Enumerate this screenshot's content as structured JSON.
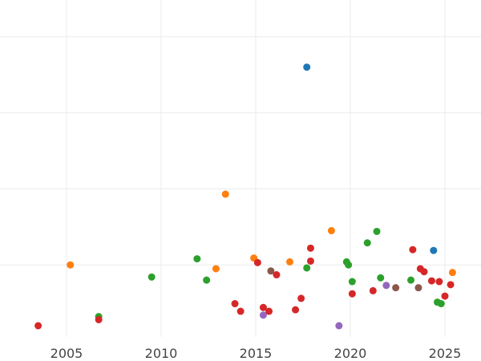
{
  "chart_data": {
    "type": "scatter",
    "title": "",
    "xlabel": "",
    "ylabel": "",
    "xlim": [
      2000,
      2027
    ],
    "ylim": [
      0,
      4.4
    ],
    "grid": true,
    "legend": "none",
    "x_ticks": [
      2005,
      2010,
      2015,
      2020,
      2025
    ],
    "x_tick_labels": [
      "2005",
      "2010",
      "2015",
      "2020",
      "2025"
    ],
    "y_gridlines": [
      1,
      2,
      3,
      4
    ],
    "colors": {
      "blue": "#1f77b4",
      "orange": "#ff7f0e",
      "green": "#2ca02c",
      "red": "#d62728",
      "purple": "#9467bd",
      "brown": "#8c564b"
    },
    "points": [
      {
        "x": 2003.5,
        "y": 0.2,
        "color": "red"
      },
      {
        "x": 2005.2,
        "y": 1.0,
        "color": "orange"
      },
      {
        "x": 2006.7,
        "y": 0.32,
        "color": "green"
      },
      {
        "x": 2006.7,
        "y": 0.28,
        "color": "red"
      },
      {
        "x": 2009.5,
        "y": 0.84,
        "color": "green"
      },
      {
        "x": 2011.9,
        "y": 1.08,
        "color": "green"
      },
      {
        "x": 2012.4,
        "y": 0.8,
        "color": "green"
      },
      {
        "x": 2012.9,
        "y": 0.95,
        "color": "orange"
      },
      {
        "x": 2013.4,
        "y": 1.93,
        "color": "orange"
      },
      {
        "x": 2013.9,
        "y": 0.49,
        "color": "red"
      },
      {
        "x": 2014.2,
        "y": 0.39,
        "color": "red"
      },
      {
        "x": 2014.9,
        "y": 1.09,
        "color": "orange"
      },
      {
        "x": 2015.1,
        "y": 1.03,
        "color": "red"
      },
      {
        "x": 2015.4,
        "y": 0.44,
        "color": "red"
      },
      {
        "x": 2015.4,
        "y": 0.34,
        "color": "purple"
      },
      {
        "x": 2015.7,
        "y": 0.39,
        "color": "red"
      },
      {
        "x": 2015.8,
        "y": 0.92,
        "color": "brown"
      },
      {
        "x": 2016.1,
        "y": 0.87,
        "color": "red"
      },
      {
        "x": 2016.8,
        "y": 1.04,
        "color": "orange"
      },
      {
        "x": 2017.1,
        "y": 0.41,
        "color": "red"
      },
      {
        "x": 2017.4,
        "y": 0.56,
        "color": "red"
      },
      {
        "x": 2017.7,
        "y": 0.96,
        "color": "green"
      },
      {
        "x": 2017.7,
        "y": 3.6,
        "color": "blue"
      },
      {
        "x": 2017.9,
        "y": 1.05,
        "color": "red"
      },
      {
        "x": 2017.9,
        "y": 1.22,
        "color": "red"
      },
      {
        "x": 2019.0,
        "y": 1.45,
        "color": "orange"
      },
      {
        "x": 2019.4,
        "y": 0.2,
        "color": "purple"
      },
      {
        "x": 2019.8,
        "y": 1.04,
        "color": "green"
      },
      {
        "x": 2019.9,
        "y": 1.0,
        "color": "green"
      },
      {
        "x": 2020.1,
        "y": 0.78,
        "color": "green"
      },
      {
        "x": 2020.1,
        "y": 0.62,
        "color": "red"
      },
      {
        "x": 2020.9,
        "y": 1.29,
        "color": "green"
      },
      {
        "x": 2021.2,
        "y": 0.66,
        "color": "red"
      },
      {
        "x": 2021.4,
        "y": 1.44,
        "color": "green"
      },
      {
        "x": 2021.6,
        "y": 0.83,
        "color": "green"
      },
      {
        "x": 2021.9,
        "y": 0.73,
        "color": "purple"
      },
      {
        "x": 2022.4,
        "y": 0.7,
        "color": "brown"
      },
      {
        "x": 2023.2,
        "y": 0.8,
        "color": "green"
      },
      {
        "x": 2023.3,
        "y": 1.2,
        "color": "red"
      },
      {
        "x": 2023.6,
        "y": 0.7,
        "color": "brown"
      },
      {
        "x": 2023.7,
        "y": 0.95,
        "color": "red"
      },
      {
        "x": 2023.9,
        "y": 0.91,
        "color": "red"
      },
      {
        "x": 2024.3,
        "y": 0.79,
        "color": "red"
      },
      {
        "x": 2024.4,
        "y": 1.19,
        "color": "blue"
      },
      {
        "x": 2024.6,
        "y": 0.51,
        "color": "green"
      },
      {
        "x": 2024.7,
        "y": 0.78,
        "color": "red"
      },
      {
        "x": 2024.8,
        "y": 0.49,
        "color": "green"
      },
      {
        "x": 2025.0,
        "y": 0.59,
        "color": "red"
      },
      {
        "x": 2025.3,
        "y": 0.74,
        "color": "red"
      },
      {
        "x": 2025.4,
        "y": 0.9,
        "color": "orange"
      }
    ]
  }
}
